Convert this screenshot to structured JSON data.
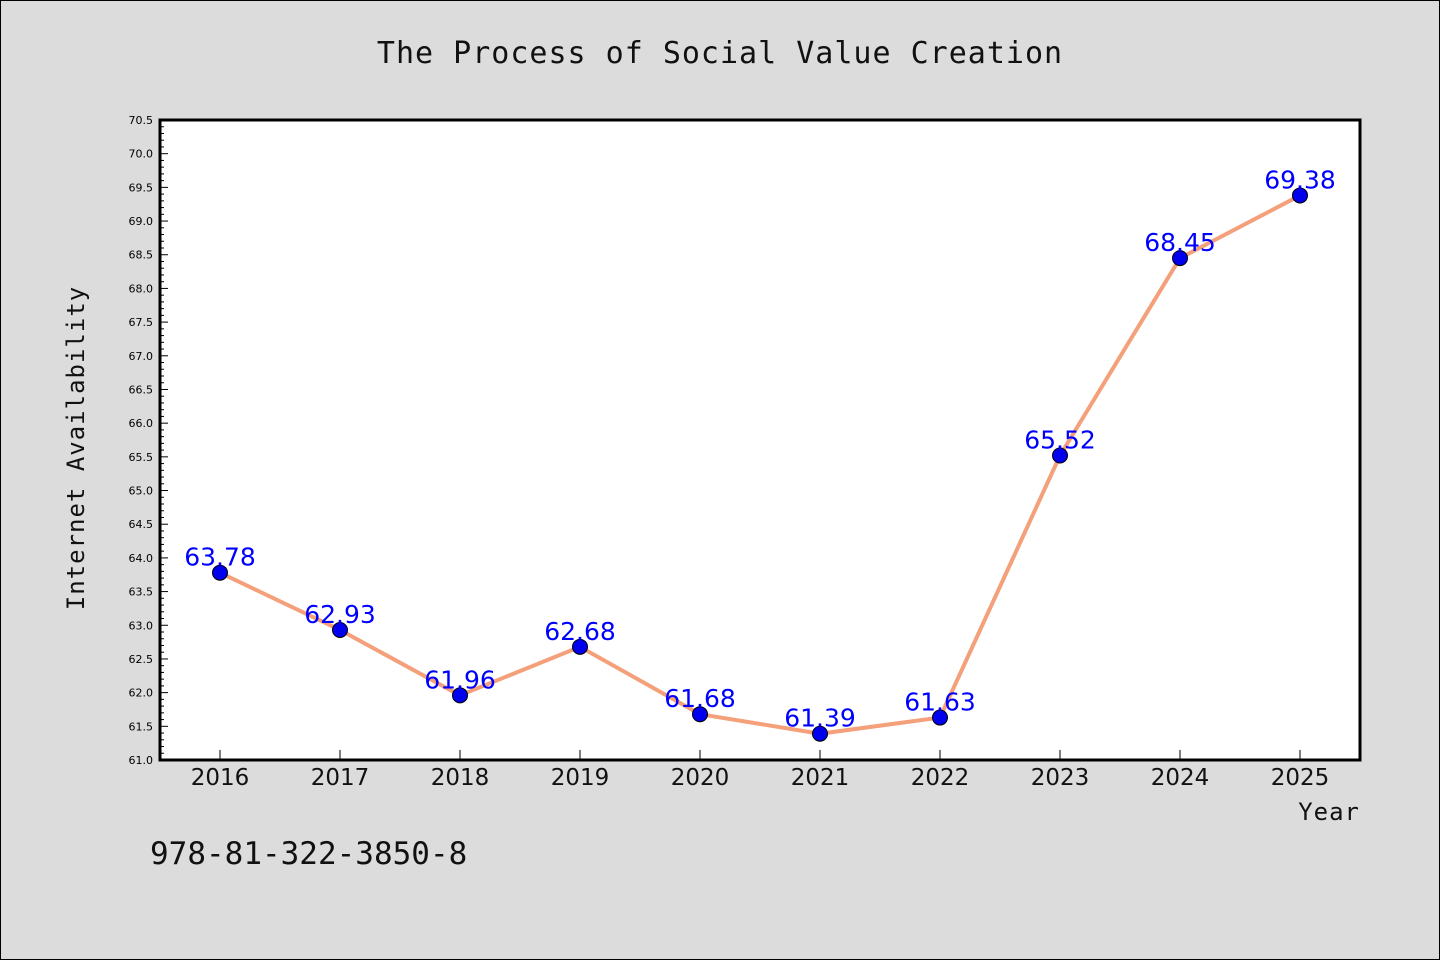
{
  "chart_data": {
    "type": "line",
    "title": "The Process of Social Value Creation",
    "xlabel": "Year",
    "ylabel": "Internet Availability",
    "categories": [
      "2016",
      "2017",
      "2018",
      "2019",
      "2020",
      "2021",
      "2022",
      "2023",
      "2024",
      "2025"
    ],
    "series": [
      {
        "values": [
          63.78,
          62.93,
          61.96,
          62.68,
          61.68,
          61.39,
          61.63,
          65.52,
          68.45,
          69.38
        ],
        "line_color": "#f4a07a",
        "marker_color": "#0000ee",
        "label_color": "#0000ff"
      }
    ],
    "data_labels": [
      "63.78",
      "62.93",
      "61.96",
      "62.68",
      "61.68",
      "61.39",
      "61.63",
      "65.52",
      "68.45",
      "69.38"
    ],
    "ylim": [
      61.0,
      70.5
    ],
    "yticks": [
      "61.0",
      "61.5",
      "62.0",
      "62.5",
      "63.0",
      "63.5",
      "64.0",
      "64.5",
      "65.0",
      "65.5",
      "66.0",
      "66.5",
      "67.0",
      "67.5",
      "68.0",
      "68.5",
      "69.0",
      "69.5",
      "70.0",
      "70.5"
    ],
    "grid": false,
    "legend": "none"
  },
  "footer": {
    "isbn": "978-81-322-3850-8"
  },
  "colors": {
    "background": "#dcdcdc",
    "plot_background": "#ffffff",
    "axes": "#000000"
  }
}
